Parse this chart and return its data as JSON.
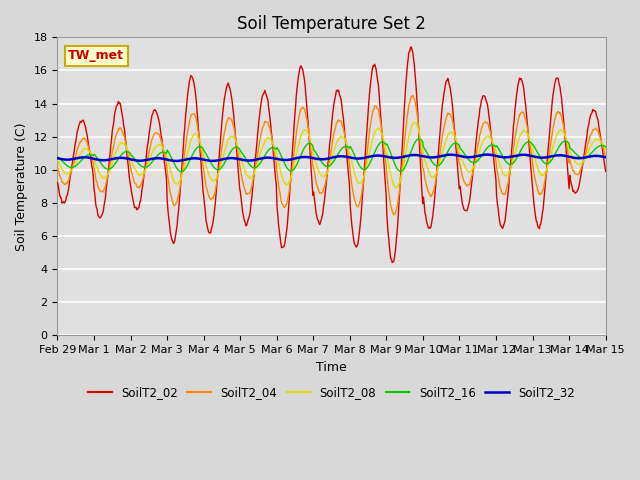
{
  "title": "Soil Temperature Set 2",
  "xlabel": "Time",
  "ylabel": "Soil Temperature (C)",
  "ylim": [
    0,
    18
  ],
  "yticks": [
    0,
    2,
    4,
    6,
    8,
    10,
    12,
    14,
    16,
    18
  ],
  "n_days": 15,
  "xtick_labels": [
    "Feb 29",
    "Mar 1",
    "Mar 2",
    "Mar 3",
    "Mar 4",
    "Mar 5",
    "Mar 6",
    "Mar 7",
    "Mar 8",
    "Mar 9",
    "Mar 10",
    "Mar 11",
    "Mar 12",
    "Mar 13",
    "Mar 14",
    "Mar 15"
  ],
  "series_colors": {
    "SoilT2_02": "#dd0000",
    "SoilT2_04": "#ff8800",
    "SoilT2_08": "#dddd00",
    "SoilT2_16": "#00cc00",
    "SoilT2_32": "#0000cc"
  },
  "legend_label": "TW_met",
  "legend_box_facecolor": "#ffffcc",
  "legend_box_edgecolor": "#ccaa00",
  "fig_facecolor": "#d8d8d8",
  "plot_facecolor": "#e0e0e0",
  "grid_color": "#ffffff",
  "title_fontsize": 12,
  "axis_label_fontsize": 9,
  "tick_fontsize": 8
}
